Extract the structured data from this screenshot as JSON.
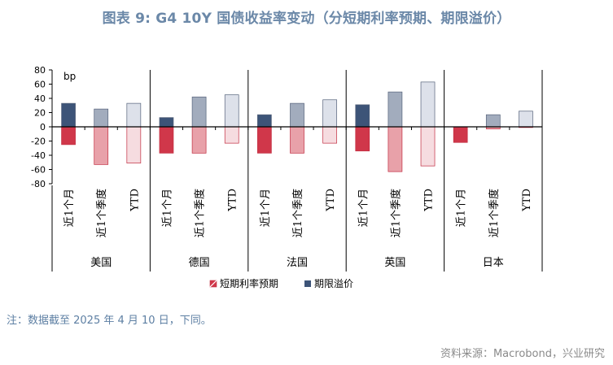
{
  "title": "图表 9:  G4 10Y 国债收益率变动（分短期利率预期、期限溢价）",
  "note": "注：数据截至 2025 年 4 月 10 日，下同。",
  "source": "资料来源：Macrobond，兴业研究",
  "chart_data": {
    "type": "bar",
    "unit_label": "bp",
    "ylim": [
      -80,
      80
    ],
    "yticks": [
      80,
      60,
      40,
      20,
      0,
      -20,
      -40,
      -60,
      -80
    ],
    "countries": [
      "美国",
      "德国",
      "法国",
      "英国",
      "日本"
    ],
    "periods": [
      "近1个月",
      "近1个季度",
      "YTD"
    ],
    "series": [
      {
        "name": "短期利率预期",
        "values": [
          [
            -25,
            -53,
            -51
          ],
          [
            -37,
            -37,
            -23
          ],
          [
            -37,
            -37,
            -23
          ],
          [
            -34,
            -63,
            -55
          ],
          [
            -22,
            -3,
            -1
          ]
        ]
      },
      {
        "name": "期限溢价",
        "values": [
          [
            33,
            25,
            33
          ],
          [
            13,
            42,
            45
          ],
          [
            17,
            33,
            38
          ],
          [
            31,
            49,
            63
          ],
          [
            0,
            17,
            22
          ]
        ]
      }
    ],
    "colors": {
      "short_rate": [
        "#d0374a",
        "#e8a1a9",
        "#f6dce0"
      ],
      "term_premium": [
        "#3d5478",
        "#a2acbd",
        "#dde1ea"
      ],
      "short_rate_edge": "#c22d40",
      "term_premium_edge": "#55627a"
    },
    "legend": [
      "短期利率预期",
      "期限溢价"
    ],
    "legend_position": "bottom"
  }
}
